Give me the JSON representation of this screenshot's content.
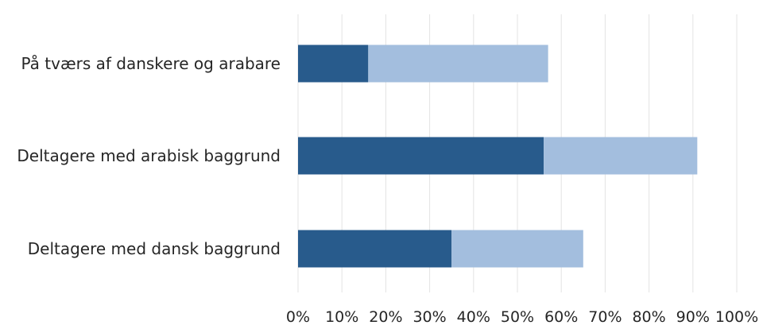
{
  "chart_data": {
    "type": "bar",
    "orientation": "horizontal",
    "stacked": true,
    "categories": [
      "På tværs af danskere og arabare",
      "Deltagere med arabisk baggrund",
      "Deltagere med dansk baggrund"
    ],
    "series": [
      {
        "values": [
          16,
          56,
          35
        ],
        "color": "#285b8c"
      },
      {
        "values": [
          41,
          35,
          30
        ],
        "color": "#a3bede"
      }
    ],
    "x_ticks": [
      "0%",
      "10%",
      "20%",
      "30%",
      "40%",
      "50%",
      "60%",
      "70%",
      "80%",
      "90%",
      "100%"
    ],
    "xlim": [
      0,
      100
    ],
    "grid": "vertical",
    "legend": "none",
    "title": "",
    "xlabel": "",
    "ylabel": ""
  }
}
